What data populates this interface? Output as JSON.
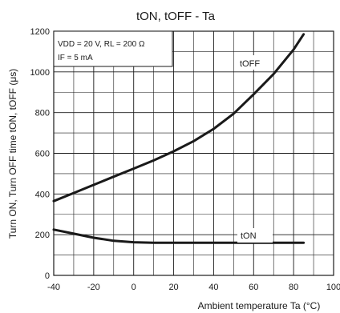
{
  "chart_data": {
    "type": "line",
    "title": "tON, tOFF - Ta",
    "xlabel": "Ambient temperature Ta (°C)",
    "ylabel": "Turn ON, Turn OFF time tON, tOFF (μs)",
    "xlim": [
      -40,
      100
    ],
    "ylim": [
      0,
      1200
    ],
    "x_ticks": [
      "-40",
      "-20",
      "0",
      "20",
      "40",
      "60",
      "80",
      "100"
    ],
    "y_ticks": [
      "0",
      "200",
      "400",
      "600",
      "800",
      "1000",
      "1200"
    ],
    "grid": true,
    "annotations": [
      "VDD = 20 V, RL = 200 Ω",
      "IF = 5 mA"
    ],
    "series": [
      {
        "name": "tOFF",
        "x": [
          -40,
          -30,
          -20,
          -10,
          0,
          10,
          20,
          30,
          40,
          50,
          60,
          70,
          80,
          85
        ],
        "values": [
          365,
          405,
          445,
          485,
          525,
          565,
          610,
          660,
          720,
          795,
          890,
          990,
          1110,
          1185
        ]
      },
      {
        "name": "tON",
        "x": [
          -40,
          -30,
          -20,
          -10,
          0,
          10,
          20,
          40,
          60,
          85
        ],
        "values": [
          225,
          205,
          185,
          170,
          163,
          160,
          160,
          160,
          160,
          160
        ]
      }
    ],
    "colors": {
      "line": "#1a1a1a",
      "grid": "#1a1a1a",
      "background": "#ffffff"
    }
  }
}
